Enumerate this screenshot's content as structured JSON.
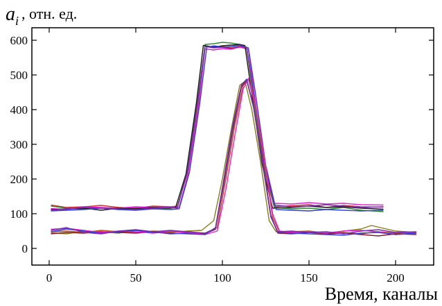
{
  "chart_data": {
    "type": "line",
    "title": "",
    "ylabel_var": "a",
    "ylabel_sub": "i",
    "ylabel_unit": ", отн. ед.",
    "xlabel": "Время, каналы",
    "xlim": [
      -10,
      222
    ],
    "ylim": [
      -48,
      636
    ],
    "xticks": [
      0,
      50,
      100,
      150,
      200
    ],
    "yticks": [
      0,
      100,
      200,
      300,
      400,
      500,
      600
    ],
    "grid": false,
    "legend": "none",
    "series": [
      {
        "color": "#d0312d",
        "values": [
          [
            1,
            125
          ],
          [
            10,
            118
          ],
          [
            20,
            120
          ],
          [
            30,
            124
          ],
          [
            40,
            118
          ],
          [
            50,
            116
          ],
          [
            60,
            122
          ],
          [
            70,
            120
          ],
          [
            74,
            122
          ],
          [
            80,
            220
          ],
          [
            86,
            420
          ],
          [
            90,
            585
          ],
          [
            95,
            580
          ],
          [
            100,
            582
          ],
          [
            105,
            578
          ],
          [
            110,
            583
          ],
          [
            114,
            576
          ],
          [
            118,
            440
          ],
          [
            124,
            240
          ],
          [
            130,
            120
          ],
          [
            140,
            123
          ],
          [
            150,
            126
          ],
          [
            160,
            118
          ],
          [
            170,
            124
          ],
          [
            180,
            120
          ],
          [
            193,
            119
          ]
        ]
      },
      {
        "color": "#2e8b2e",
        "values": [
          [
            1,
            122
          ],
          [
            10,
            116
          ],
          [
            20,
            114
          ],
          [
            30,
            118
          ],
          [
            40,
            112
          ],
          [
            50,
            118
          ],
          [
            60,
            114
          ],
          [
            70,
            116
          ],
          [
            74,
            118
          ],
          [
            80,
            230
          ],
          [
            86,
            440
          ],
          [
            90,
            588
          ],
          [
            95,
            590
          ],
          [
            100,
            594
          ],
          [
            105,
            592
          ],
          [
            110,
            588
          ],
          [
            114,
            580
          ],
          [
            118,
            430
          ],
          [
            124,
            230
          ],
          [
            130,
            118
          ],
          [
            140,
            114
          ],
          [
            150,
            116
          ],
          [
            160,
            112
          ],
          [
            170,
            118
          ],
          [
            180,
            110
          ],
          [
            193,
            106
          ]
        ]
      },
      {
        "color": "#e81fd6",
        "values": [
          [
            1,
            115
          ],
          [
            10,
            112
          ],
          [
            20,
            120
          ],
          [
            30,
            118
          ],
          [
            40,
            116
          ],
          [
            50,
            120
          ],
          [
            60,
            118
          ],
          [
            70,
            120
          ],
          [
            75,
            118
          ],
          [
            80,
            210
          ],
          [
            86,
            400
          ],
          [
            90,
            575
          ],
          [
            95,
            572
          ],
          [
            100,
            576
          ],
          [
            105,
            574
          ],
          [
            110,
            580
          ],
          [
            115,
            574
          ],
          [
            118,
            460
          ],
          [
            124,
            250
          ],
          [
            130,
            130
          ],
          [
            140,
            128
          ],
          [
            150,
            132
          ],
          [
            160,
            128
          ],
          [
            170,
            130
          ],
          [
            180,
            126
          ],
          [
            193,
            125
          ]
        ]
      },
      {
        "color": "#1a1a1a",
        "values": [
          [
            1,
            112
          ],
          [
            10,
            114
          ],
          [
            20,
            116
          ],
          [
            30,
            110
          ],
          [
            40,
            116
          ],
          [
            50,
            114
          ],
          [
            60,
            118
          ],
          [
            70,
            116
          ],
          [
            73,
            118
          ],
          [
            79,
            215
          ],
          [
            85,
            420
          ],
          [
            89,
            585
          ],
          [
            95,
            580
          ],
          [
            100,
            584
          ],
          [
            105,
            586
          ],
          [
            110,
            588
          ],
          [
            113,
            585
          ],
          [
            117,
            445
          ],
          [
            123,
            240
          ],
          [
            129,
            116
          ],
          [
            140,
            118
          ],
          [
            150,
            122
          ],
          [
            160,
            118
          ],
          [
            170,
            120
          ],
          [
            180,
            116
          ],
          [
            193,
            113
          ]
        ]
      },
      {
        "color": "#2f3fd8",
        "values": [
          [
            1,
            108
          ],
          [
            10,
            110
          ],
          [
            20,
            112
          ],
          [
            30,
            116
          ],
          [
            40,
            112
          ],
          [
            50,
            110
          ],
          [
            60,
            114
          ],
          [
            70,
            112
          ],
          [
            75,
            114
          ],
          [
            81,
            220
          ],
          [
            87,
            420
          ],
          [
            91,
            580
          ],
          [
            95,
            584
          ],
          [
            100,
            580
          ],
          [
            105,
            582
          ],
          [
            110,
            586
          ],
          [
            115,
            578
          ],
          [
            119,
            450
          ],
          [
            125,
            240
          ],
          [
            131,
            112
          ],
          [
            140,
            110
          ],
          [
            150,
            108
          ],
          [
            160,
            112
          ],
          [
            170,
            110
          ],
          [
            180,
            108
          ],
          [
            193,
            110
          ]
        ]
      },
      {
        "color": "#7a2ab0",
        "values": [
          [
            1,
            110
          ],
          [
            10,
            114
          ],
          [
            20,
            118
          ],
          [
            30,
            116
          ],
          [
            40,
            114
          ],
          [
            50,
            112
          ],
          [
            60,
            116
          ],
          [
            70,
            118
          ],
          [
            74,
            116
          ],
          [
            80,
            225
          ],
          [
            86,
            430
          ],
          [
            90,
            582
          ],
          [
            95,
            578
          ],
          [
            100,
            580
          ],
          [
            105,
            576
          ],
          [
            110,
            582
          ],
          [
            114,
            580
          ],
          [
            118,
            450
          ],
          [
            124,
            250
          ],
          [
            130,
            125
          ],
          [
            140,
            120
          ],
          [
            150,
            122
          ],
          [
            160,
            126
          ],
          [
            170,
            122
          ],
          [
            180,
            118
          ],
          [
            193,
            120
          ]
        ]
      },
      {
        "color": "#8a7a10",
        "values": [
          [
            1,
            45
          ],
          [
            10,
            42
          ],
          [
            20,
            50
          ],
          [
            30,
            48
          ],
          [
            40,
            44
          ],
          [
            50,
            52
          ],
          [
            60,
            48
          ],
          [
            70,
            46
          ],
          [
            80,
            50
          ],
          [
            88,
            52
          ],
          [
            95,
            80
          ],
          [
            100,
            200
          ],
          [
            105,
            340
          ],
          [
            110,
            470
          ],
          [
            113,
            482
          ],
          [
            117,
            400
          ],
          [
            122,
            250
          ],
          [
            127,
            80
          ],
          [
            131,
            48
          ],
          [
            140,
            46
          ],
          [
            150,
            48
          ],
          [
            160,
            44
          ],
          [
            170,
            50
          ],
          [
            180,
            56
          ],
          [
            186,
            66
          ],
          [
            193,
            58
          ],
          [
            200,
            50
          ],
          [
            212,
            46
          ]
        ]
      },
      {
        "color": "#c24a1a",
        "values": [
          [
            1,
            48
          ],
          [
            10,
            50
          ],
          [
            20,
            46
          ],
          [
            30,
            52
          ],
          [
            40,
            48
          ],
          [
            50,
            46
          ],
          [
            60,
            50
          ],
          [
            70,
            48
          ],
          [
            80,
            46
          ],
          [
            90,
            44
          ],
          [
            97,
            60
          ],
          [
            102,
            200
          ],
          [
            107,
            350
          ],
          [
            112,
            470
          ],
          [
            115,
            487
          ],
          [
            119,
            410
          ],
          [
            124,
            260
          ],
          [
            129,
            90
          ],
          [
            133,
            46
          ],
          [
            140,
            48
          ],
          [
            150,
            50
          ],
          [
            160,
            44
          ],
          [
            170,
            46
          ],
          [
            180,
            42
          ],
          [
            190,
            48
          ],
          [
            200,
            44
          ],
          [
            212,
            46
          ]
        ]
      },
      {
        "color": "#8b1a2a",
        "values": [
          [
            1,
            42
          ],
          [
            10,
            46
          ],
          [
            20,
            44
          ],
          [
            30,
            48
          ],
          [
            40,
            46
          ],
          [
            50,
            44
          ],
          [
            60,
            48
          ],
          [
            70,
            42
          ],
          [
            80,
            44
          ],
          [
            90,
            42
          ],
          [
            96,
            55
          ],
          [
            101,
            190
          ],
          [
            106,
            340
          ],
          [
            111,
            465
          ],
          [
            114,
            485
          ],
          [
            118,
            410
          ],
          [
            123,
            260
          ],
          [
            128,
            95
          ],
          [
            132,
            44
          ],
          [
            140,
            42
          ],
          [
            150,
            46
          ],
          [
            160,
            42
          ],
          [
            170,
            44
          ],
          [
            180,
            40
          ],
          [
            190,
            36
          ],
          [
            200,
            42
          ],
          [
            212,
            40
          ]
        ]
      },
      {
        "color": "#e81fd6",
        "values": [
          [
            1,
            55
          ],
          [
            10,
            58
          ],
          [
            20,
            52
          ],
          [
            30,
            46
          ],
          [
            40,
            50
          ],
          [
            50,
            48
          ],
          [
            60,
            44
          ],
          [
            70,
            50
          ],
          [
            80,
            46
          ],
          [
            90,
            40
          ],
          [
            97,
            50
          ],
          [
            102,
            170
          ],
          [
            107,
            320
          ],
          [
            112,
            460
          ],
          [
            115,
            490
          ],
          [
            119,
            420
          ],
          [
            124,
            270
          ],
          [
            129,
            100
          ],
          [
            133,
            50
          ],
          [
            140,
            46
          ],
          [
            150,
            48
          ],
          [
            160,
            44
          ],
          [
            170,
            50
          ],
          [
            180,
            52
          ],
          [
            190,
            48
          ],
          [
            200,
            40
          ],
          [
            212,
            44
          ]
        ]
      },
      {
        "color": "#2f3fd8",
        "values": [
          [
            1,
            48
          ],
          [
            10,
            56
          ],
          [
            20,
            50
          ],
          [
            30,
            44
          ],
          [
            40,
            48
          ],
          [
            50,
            52
          ],
          [
            60,
            46
          ],
          [
            70,
            44
          ],
          [
            80,
            42
          ],
          [
            90,
            40
          ],
          [
            96,
            60
          ],
          [
            101,
            200
          ],
          [
            106,
            350
          ],
          [
            111,
            470
          ],
          [
            114,
            488
          ],
          [
            118,
            410
          ],
          [
            123,
            250
          ],
          [
            128,
            90
          ],
          [
            132,
            46
          ],
          [
            140,
            44
          ],
          [
            150,
            42
          ],
          [
            160,
            40
          ],
          [
            170,
            38
          ],
          [
            180,
            44
          ],
          [
            190,
            46
          ],
          [
            200,
            40
          ],
          [
            212,
            44
          ]
        ]
      },
      {
        "color": "#7a2ab0",
        "values": [
          [
            1,
            52
          ],
          [
            10,
            60
          ],
          [
            20,
            46
          ],
          [
            30,
            42
          ],
          [
            40,
            50
          ],
          [
            50,
            54
          ],
          [
            60,
            48
          ],
          [
            70,
            52
          ],
          [
            80,
            48
          ],
          [
            90,
            44
          ],
          [
            96,
            58
          ],
          [
            101,
            205
          ],
          [
            106,
            355
          ],
          [
            111,
            472
          ],
          [
            114,
            486
          ],
          [
            118,
            405
          ],
          [
            123,
            255
          ],
          [
            128,
            92
          ],
          [
            132,
            48
          ],
          [
            140,
            50
          ],
          [
            150,
            46
          ],
          [
            160,
            48
          ],
          [
            170,
            42
          ],
          [
            180,
            50
          ],
          [
            190,
            54
          ],
          [
            200,
            46
          ],
          [
            212,
            48
          ]
        ]
      }
    ]
  }
}
